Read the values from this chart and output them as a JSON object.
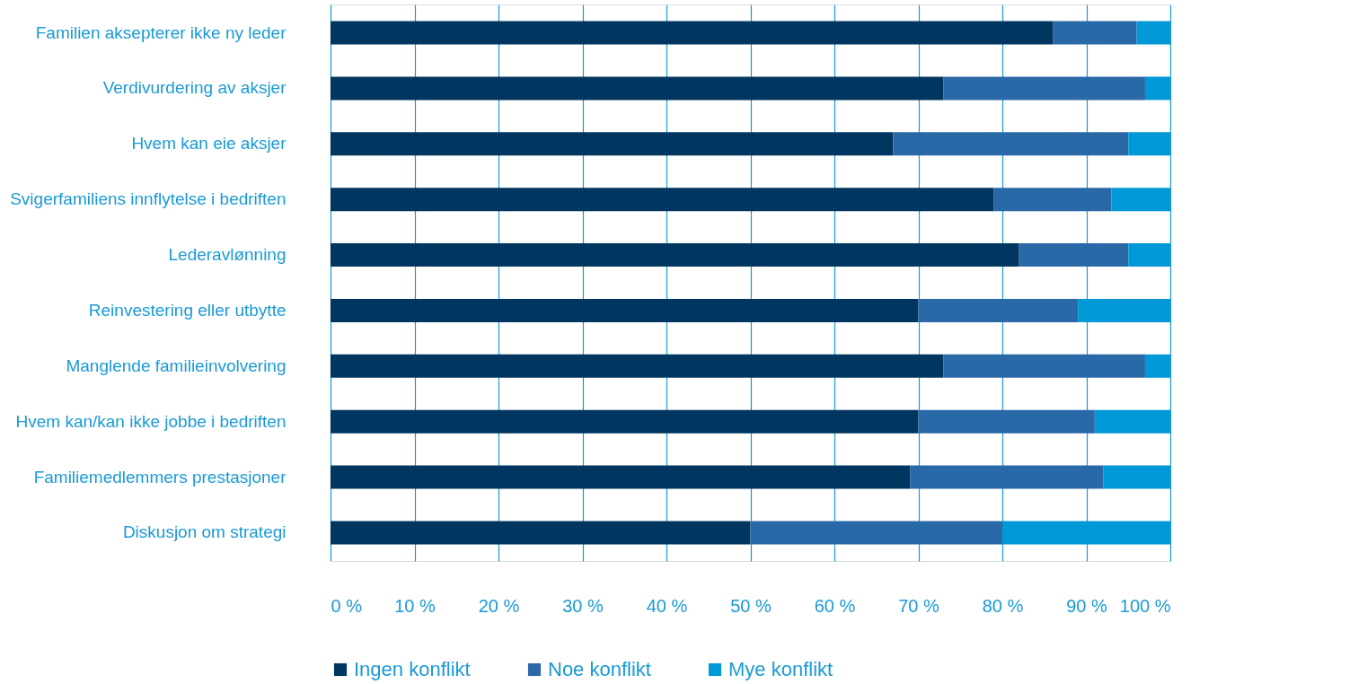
{
  "chart_data": {
    "type": "bar",
    "orientation": "horizontal",
    "stacked": true,
    "categories": [
      "Familien aksepterer ikke ny leder",
      "Verdivurdering av aksjer",
      "Hvem kan eie aksjer",
      "Svigerfamiliens innflytelse i bedriften",
      "Lederavlønning",
      "Reinvestering eller utbytte",
      "Manglende familieinvolvering",
      "Hvem kan/kan ikke jobbe i bedriften",
      "Familiemedlemmers prestasjoner",
      "Diskusjon om strategi"
    ],
    "series": [
      {
        "name": "Ingen konflikt",
        "color": "#003660",
        "values": [
          86,
          73,
          67,
          79,
          82,
          70,
          73,
          70,
          69,
          50
        ]
      },
      {
        "name": "Noe konflikt",
        "color": "#2a69a8",
        "values": [
          10,
          24,
          28,
          14,
          13,
          19,
          24,
          21,
          23,
          30
        ]
      },
      {
        "name": "Mye konflikt",
        "color": "#0098d6",
        "values": [
          4,
          3,
          5,
          7,
          5,
          11,
          3,
          9,
          8,
          20
        ]
      }
    ],
    "xlim": [
      0,
      100
    ],
    "xticks": [
      {
        "value": 0,
        "label": "0 %"
      },
      {
        "value": 10,
        "label": "10 %"
      },
      {
        "value": 20,
        "label": "20 %"
      },
      {
        "value": 30,
        "label": "30 %"
      },
      {
        "value": 40,
        "label": "40 %"
      },
      {
        "value": 50,
        "label": "50 %"
      },
      {
        "value": 60,
        "label": "60 %"
      },
      {
        "value": 70,
        "label": "70 %"
      },
      {
        "value": 80,
        "label": "80 %"
      },
      {
        "value": 90,
        "label": "90 %"
      },
      {
        "value": 100,
        "label": "100 %"
      }
    ],
    "grid": "x",
    "legend": "bottom"
  }
}
